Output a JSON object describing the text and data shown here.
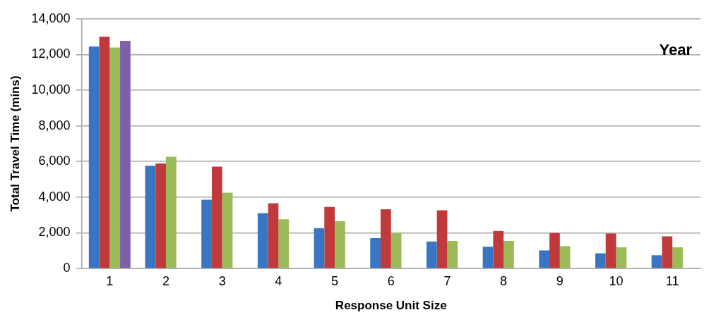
{
  "chart_data": {
    "type": "bar",
    "xlabel": "Response Unit Size",
    "ylabel": "Total Travel Time (mins)",
    "legend_title": "Year",
    "grid": "y",
    "categories": [
      "1",
      "2",
      "3",
      "4",
      "5",
      "6",
      "7",
      "8",
      "9",
      "10",
      "11"
    ],
    "ylim": [
      0,
      14000
    ],
    "yticks": [
      {
        "value": 0,
        "label": "0"
      },
      {
        "value": 2000,
        "label": "2,000"
      },
      {
        "value": 4000,
        "label": "4,000"
      },
      {
        "value": 6000,
        "label": "6,000"
      },
      {
        "value": 8000,
        "label": "8,000"
      },
      {
        "value": 10000,
        "label": "10,000"
      },
      {
        "value": 12000,
        "label": "12,000"
      },
      {
        "value": 14000,
        "label": "14,000"
      }
    ],
    "series": [
      {
        "color": "#3a75c4",
        "values": [
          12450,
          5760,
          3850,
          3100,
          2260,
          1700,
          1510,
          1220,
          1010,
          850,
          740
        ]
      },
      {
        "color": "#c0393b",
        "values": [
          13000,
          5890,
          5710,
          3660,
          3450,
          3320,
          3260,
          2100,
          1990,
          1960,
          1800
        ]
      },
      {
        "color": "#9bbb59",
        "values": [
          12390,
          6260,
          4250,
          2760,
          2650,
          1990,
          1540,
          1540,
          1250,
          1190,
          1190
        ]
      },
      {
        "color": "#7f5fa8",
        "values": [
          12770,
          null,
          null,
          null,
          null,
          null,
          null,
          null,
          null,
          null,
          null
        ]
      }
    ]
  }
}
